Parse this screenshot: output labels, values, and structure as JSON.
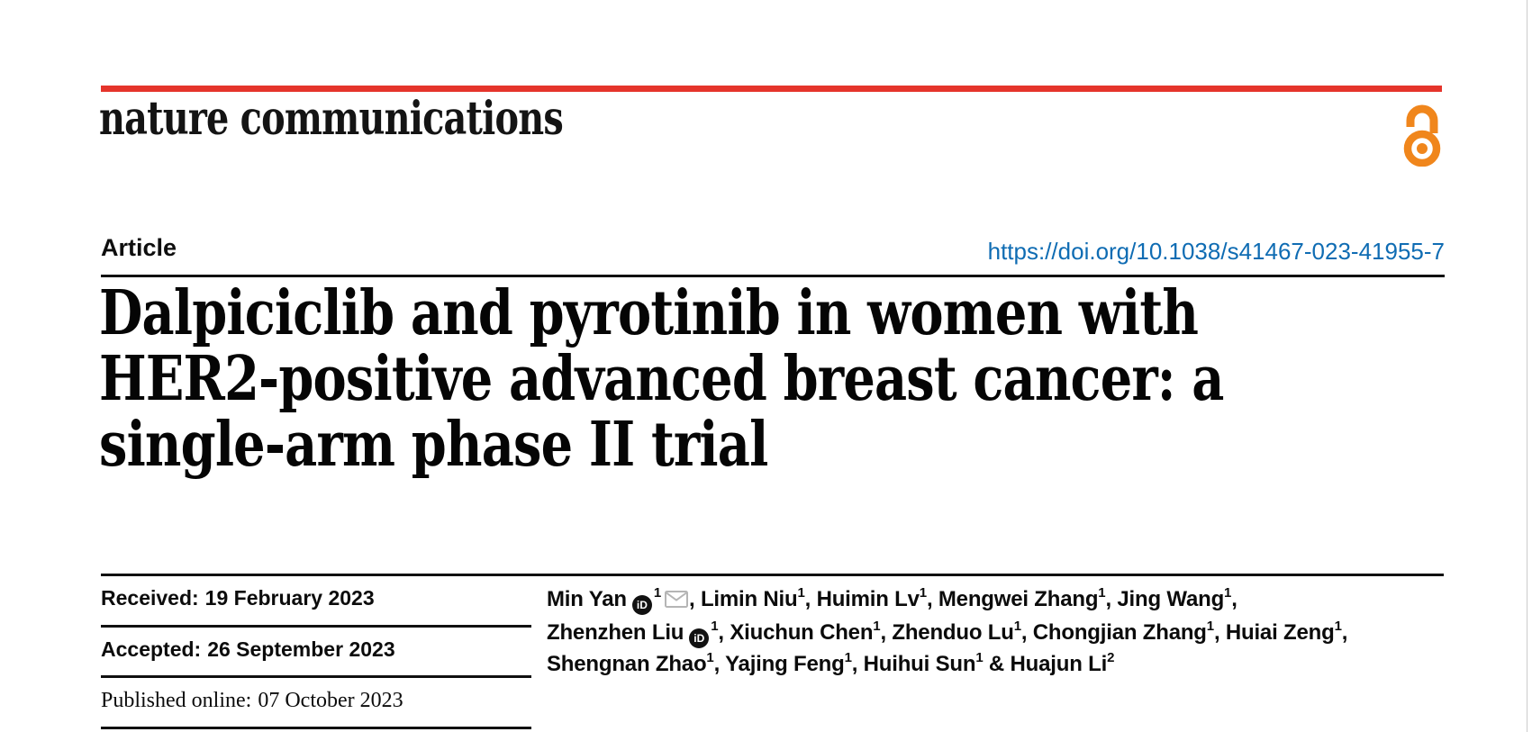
{
  "journal": {
    "name": "nature communications"
  },
  "header": {
    "article_label": "Article",
    "doi": "https://doi.org/10.1038/s41467-023-41955-7"
  },
  "title": {
    "lines": [
      "Dalpiciclib and pyrotinib in women with",
      "HER2-positive advanced breast cancer: a",
      "single-arm phase II trial"
    ]
  },
  "dates": [
    {
      "label": "Received:",
      "value": "19 February 2023"
    },
    {
      "label": "Accepted:",
      "value": "26 September 2023"
    },
    {
      "label": "Published online:",
      "value": "07 October 2023"
    }
  ],
  "authors": {
    "lines": [
      [
        {
          "t": "name",
          "v": "Min Yan"
        },
        {
          "t": "orcid"
        },
        {
          "t": "sup",
          "v": "1"
        },
        {
          "t": "mail"
        },
        {
          "t": "text",
          "v": ", "
        },
        {
          "t": "name",
          "v": "Limin Niu"
        },
        {
          "t": "sup",
          "v": "1"
        },
        {
          "t": "text",
          "v": ", "
        },
        {
          "t": "name",
          "v": "Huimin Lv"
        },
        {
          "t": "sup",
          "v": "1"
        },
        {
          "t": "text",
          "v": ", "
        },
        {
          "t": "name",
          "v": "Mengwei Zhang"
        },
        {
          "t": "sup",
          "v": "1"
        },
        {
          "t": "text",
          "v": ", "
        },
        {
          "t": "name",
          "v": "Jing Wang"
        },
        {
          "t": "sup",
          "v": "1"
        },
        {
          "t": "text",
          "v": ","
        }
      ],
      [
        {
          "t": "name",
          "v": "Zhenzhen Liu"
        },
        {
          "t": "orcid"
        },
        {
          "t": "sup",
          "v": "1"
        },
        {
          "t": "text",
          "v": ", "
        },
        {
          "t": "name",
          "v": "Xiuchun Chen"
        },
        {
          "t": "sup",
          "v": "1"
        },
        {
          "t": "text",
          "v": ", "
        },
        {
          "t": "name",
          "v": "Zhenduo Lu"
        },
        {
          "t": "sup",
          "v": "1"
        },
        {
          "t": "text",
          "v": ", "
        },
        {
          "t": "name",
          "v": "Chongjian Zhang"
        },
        {
          "t": "sup",
          "v": "1"
        },
        {
          "t": "text",
          "v": ", "
        },
        {
          "t": "name",
          "v": "Huiai Zeng"
        },
        {
          "t": "sup",
          "v": "1"
        },
        {
          "t": "text",
          "v": ","
        }
      ],
      [
        {
          "t": "name",
          "v": "Shengnan Zhao"
        },
        {
          "t": "sup",
          "v": "1"
        },
        {
          "t": "text",
          "v": ", "
        },
        {
          "t": "name",
          "v": "Yajing Feng"
        },
        {
          "t": "sup",
          "v": "1"
        },
        {
          "t": "text",
          "v": ", "
        },
        {
          "t": "name",
          "v": "Huihui Sun"
        },
        {
          "t": "sup",
          "v": "1"
        },
        {
          "t": "text",
          "v": " & "
        },
        {
          "t": "name",
          "v": "Huajun Li"
        },
        {
          "t": "sup",
          "v": "2"
        }
      ]
    ]
  },
  "icons": {
    "orcid_text": "iD",
    "open_access": "open-access-lock-icon",
    "email": "envelope-icon"
  },
  "colors": {
    "brand_red": "#e5342b",
    "open_access_orange": "#f0861c",
    "link_blue": "#0f6cb3",
    "text_black": "#0c0c0c",
    "icon_gray": "#b5b5b5"
  }
}
